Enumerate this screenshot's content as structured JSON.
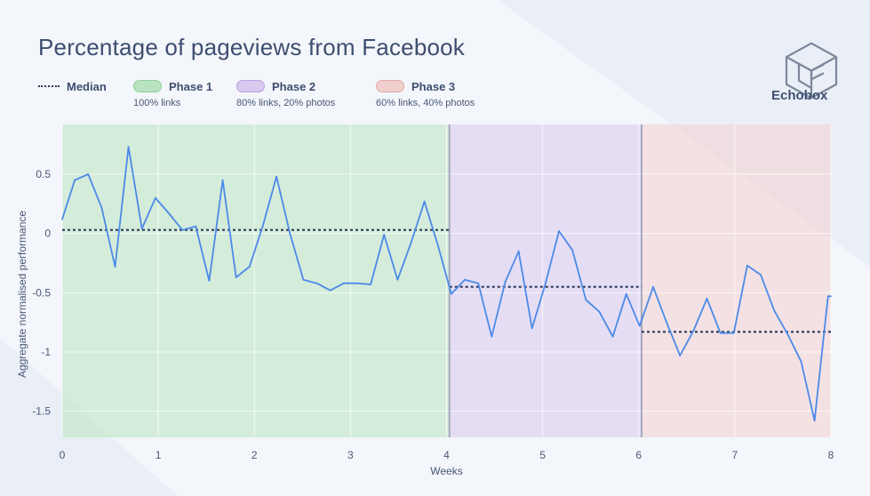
{
  "title": "Percentage of pageviews from Facebook",
  "brand": "Echobox",
  "legend": {
    "median": "Median",
    "phase1": {
      "name": "Phase 1",
      "desc": "100% links"
    },
    "phase2": {
      "name": "Phase 2",
      "desc": "80% links, 20% photos"
    },
    "phase3": {
      "name": "Phase 3",
      "desc": "60% links, 40% photos"
    }
  },
  "colors": {
    "line": "#4c8ae8",
    "median": "#2e3a5c",
    "phase1": "#b9e3c0",
    "phase2": "#d9c9ef",
    "phase3": "#f2cfcf"
  },
  "chart_data": {
    "type": "line",
    "title": "Percentage of pageviews from Facebook",
    "xlabel": "Weeks",
    "ylabel": "Aggregate normalised performance",
    "xlim": [
      0,
      8
    ],
    "ylim": [
      -1.72,
      0.92
    ],
    "x_ticks": [
      0,
      1,
      2,
      3,
      4,
      5,
      6,
      7,
      8
    ],
    "y_ticks": [
      0.5,
      0,
      -0.5,
      -1,
      -1.5
    ],
    "y_tick_labels": [
      "0.5",
      "0",
      "-0.5",
      "-1",
      "-1.5"
    ],
    "grid": true,
    "legend_position": "top-left",
    "phases": [
      {
        "name": "Phase 1",
        "x_start": 0,
        "x_end": 4.03,
        "median": 0.03
      },
      {
        "name": "Phase 2",
        "x_start": 4.03,
        "x_end": 6.03,
        "median": -0.45
      },
      {
        "name": "Phase 3",
        "x_start": 6.03,
        "x_end": 8,
        "median": -0.83
      }
    ],
    "series": [
      {
        "x": [
          0,
          0.13,
          0.27,
          0.41,
          0.55,
          0.69,
          0.83,
          0.97,
          1.11,
          1.25,
          1.39,
          1.53,
          1.67,
          1.81,
          1.95,
          2.09,
          2.23,
          2.37,
          2.51,
          2.65,
          2.79,
          2.93,
          3.07,
          3.21,
          3.35,
          3.49,
          3.63,
          3.77,
          3.91,
          4.05,
          4.19,
          4.33,
          4.47,
          4.61,
          4.75,
          4.89,
          5.03,
          5.17,
          5.31,
          5.45,
          5.59,
          5.73,
          5.87,
          6.01,
          6.15,
          6.29,
          6.43,
          6.57,
          6.71,
          6.85,
          6.99,
          7.13,
          7.27,
          7.41,
          7.55,
          7.69,
          7.83,
          7.97,
          8.0
        ],
        "y": [
          0.12,
          0.45,
          0.5,
          0.22,
          -0.28,
          0.73,
          0.04,
          0.3,
          0.17,
          0.03,
          0.06,
          -0.4,
          0.45,
          -0.37,
          -0.28,
          0.07,
          0.48,
          0.0,
          -0.39,
          -0.42,
          -0.48,
          -0.42,
          -0.42,
          -0.43,
          -0.01,
          -0.39,
          -0.08,
          0.27,
          -0.1,
          -0.51,
          -0.39,
          -0.42,
          -0.87,
          -0.41,
          -0.15,
          -0.8,
          -0.42,
          0.02,
          -0.14,
          -0.56,
          -0.66,
          -0.87,
          -0.51,
          -0.78,
          -0.45,
          -0.75,
          -1.03,
          -0.82,
          -0.55,
          -0.84,
          -0.84,
          -0.27,
          -0.35,
          -0.65,
          -0.85,
          -1.08,
          -1.58,
          -0.53,
          -0.53
        ]
      }
    ]
  }
}
